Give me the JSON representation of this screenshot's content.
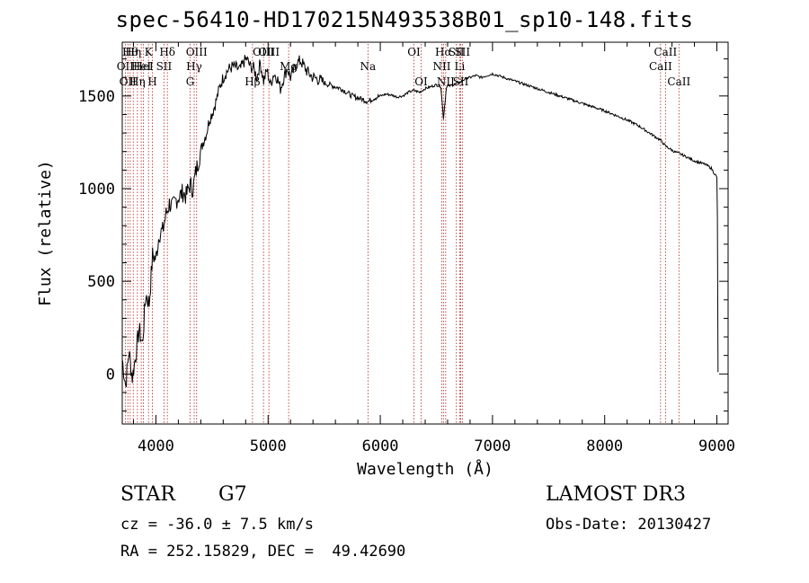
{
  "title": "spec-56410-HD170215N493538B01_sp10-148.fits",
  "info": {
    "object_class": "STAR",
    "subclass": "G7",
    "survey": "LAMOST DR3",
    "cz": "cz = -36.0 ± 7.5 km/s",
    "obs_date": "Obs-Date: 20130427",
    "coords": "RA = 252.15829, DEC =  49.42690"
  },
  "chart_data": {
    "type": "line",
    "xlabel": "Wavelength (Å)",
    "ylabel": "Flux (relative)",
    "xlim": [
      3700,
      9100
    ],
    "ylim": [
      -270,
      1790
    ],
    "xticks": [
      4000,
      5000,
      6000,
      7000,
      8000,
      9000
    ],
    "yticks": [
      0,
      500,
      1000,
      1500
    ],
    "line_color": "#000000",
    "marker_color": "#b22222",
    "series": [
      {
        "x": [
          3700,
          3730,
          3760,
          3790,
          3820,
          3850,
          3880,
          3910,
          3940,
          3970,
          4000,
          4030,
          4060,
          4090,
          4120,
          4150,
          4180,
          4210,
          4240,
          4270,
          4300,
          4330,
          4360,
          4390,
          4420,
          4450,
          4480,
          4510,
          4540,
          4570,
          4600,
          4630,
          4660,
          4690,
          4720,
          4750,
          4780,
          4810,
          4840,
          4870,
          4900,
          4930,
          4960,
          4990,
          5020,
          5050,
          5080,
          5110,
          5140,
          5170,
          5200,
          5230,
          5260,
          5290,
          5320,
          5350,
          5400,
          5450,
          5500,
          5550,
          5600,
          5650,
          5700,
          5750,
          5800,
          5850,
          5890,
          5920,
          5950,
          6000,
          6050,
          6100,
          6150,
          6200,
          6250,
          6300,
          6350,
          6400,
          6450,
          6500,
          6540,
          6563,
          6590,
          6650,
          6700,
          6750,
          6800,
          6850,
          6900,
          6950,
          7000,
          7050,
          7100,
          7150,
          7200,
          7300,
          7400,
          7500,
          7600,
          7700,
          7800,
          7900,
          8000,
          8100,
          8200,
          8300,
          8400,
          8450,
          8500,
          8542,
          8580,
          8620,
          8662,
          8700,
          8750,
          8800,
          8850,
          8900,
          8950,
          8980,
          9000,
          9005,
          9010
        ],
        "y": [
          80,
          -60,
          120,
          -20,
          100,
          240,
          160,
          430,
          380,
          640,
          620,
          760,
          770,
          860,
          920,
          900,
          940,
          960,
          980,
          960,
          1020,
          1000,
          1100,
          1180,
          1250,
          1300,
          1380,
          1420,
          1480,
          1550,
          1600,
          1630,
          1650,
          1660,
          1650,
          1640,
          1680,
          1700,
          1660,
          1650,
          1600,
          1680,
          1580,
          1640,
          1560,
          1620,
          1600,
          1540,
          1600,
          1650,
          1600,
          1640,
          1680,
          1690,
          1660,
          1630,
          1600,
          1590,
          1570,
          1560,
          1550,
          1540,
          1520,
          1500,
          1490,
          1480,
          1470,
          1480,
          1490,
          1500,
          1510,
          1505,
          1495,
          1500,
          1520,
          1530,
          1520,
          1540,
          1550,
          1560,
          1550,
          1380,
          1550,
          1560,
          1570,
          1590,
          1600,
          1610,
          1600,
          1610,
          1620,
          1610,
          1600,
          1590,
          1580,
          1560,
          1540,
          1520,
          1500,
          1480,
          1460,
          1440,
          1420,
          1395,
          1370,
          1340,
          1300,
          1280,
          1260,
          1230,
          1215,
          1200,
          1190,
          1180,
          1165,
          1150,
          1140,
          1130,
          1110,
          1080,
          1060,
          850,
          10
        ]
      }
    ],
    "lines": [
      {
        "w": 3727,
        "label": "OII",
        "row": 2
      },
      {
        "w": 3750,
        "label": "OII",
        "row": 3
      },
      {
        "w": 3771,
        "label": "Hθ",
        "row": 1
      },
      {
        "w": 3798,
        "label": "Hη",
        "row": 1
      },
      {
        "w": 3835,
        "label": "Hη",
        "row": 3
      },
      {
        "w": 3869,
        "label": "HeI",
        "row": 2
      },
      {
        "w": 3889,
        "label": "HeI",
        "row": 2
      },
      {
        "w": 3934,
        "label": "K",
        "row": 1
      },
      {
        "w": 3969,
        "label": "H",
        "row": 3
      },
      {
        "w": 4072,
        "label": "SII",
        "row": 2
      },
      {
        "w": 4102,
        "label": "Hδ",
        "row": 1
      },
      {
        "w": 4305,
        "label": "G",
        "row": 3
      },
      {
        "w": 4341,
        "label": "Hγ",
        "row": 2
      },
      {
        "w": 4363,
        "label": "OIII",
        "row": 1
      },
      {
        "w": 4861,
        "label": "Hβ",
        "row": 3
      },
      {
        "w": 4959,
        "label": "OIII",
        "row": 1
      },
      {
        "w": 5007,
        "label": "OIII",
        "row": 1
      },
      {
        "w": 5183,
        "label": "Mg",
        "row": 2
      },
      {
        "w": 5890,
        "label": "Na",
        "row": 2
      },
      {
        "w": 6300,
        "label": "OI",
        "row": 1
      },
      {
        "w": 6364,
        "label": "OI",
        "row": 3
      },
      {
        "w": 6548,
        "label": "NII",
        "row": 2
      },
      {
        "w": 6563,
        "label": "Hα",
        "row": 1
      },
      {
        "w": 6583,
        "label": "NII",
        "row": 3
      },
      {
        "w": 6678,
        "label": "SII",
        "row": 1
      },
      {
        "w": 6708,
        "label": "Li",
        "row": 2
      },
      {
        "w": 6717,
        "label": "SII",
        "row": 3
      },
      {
        "w": 6731,
        "label": "SII",
        "row": 1
      },
      {
        "w": 8498,
        "label": "CaII",
        "row": 2
      },
      {
        "w": 8542,
        "label": "CaII",
        "row": 1
      },
      {
        "w": 8662,
        "label": "CaII",
        "row": 3
      }
    ]
  }
}
